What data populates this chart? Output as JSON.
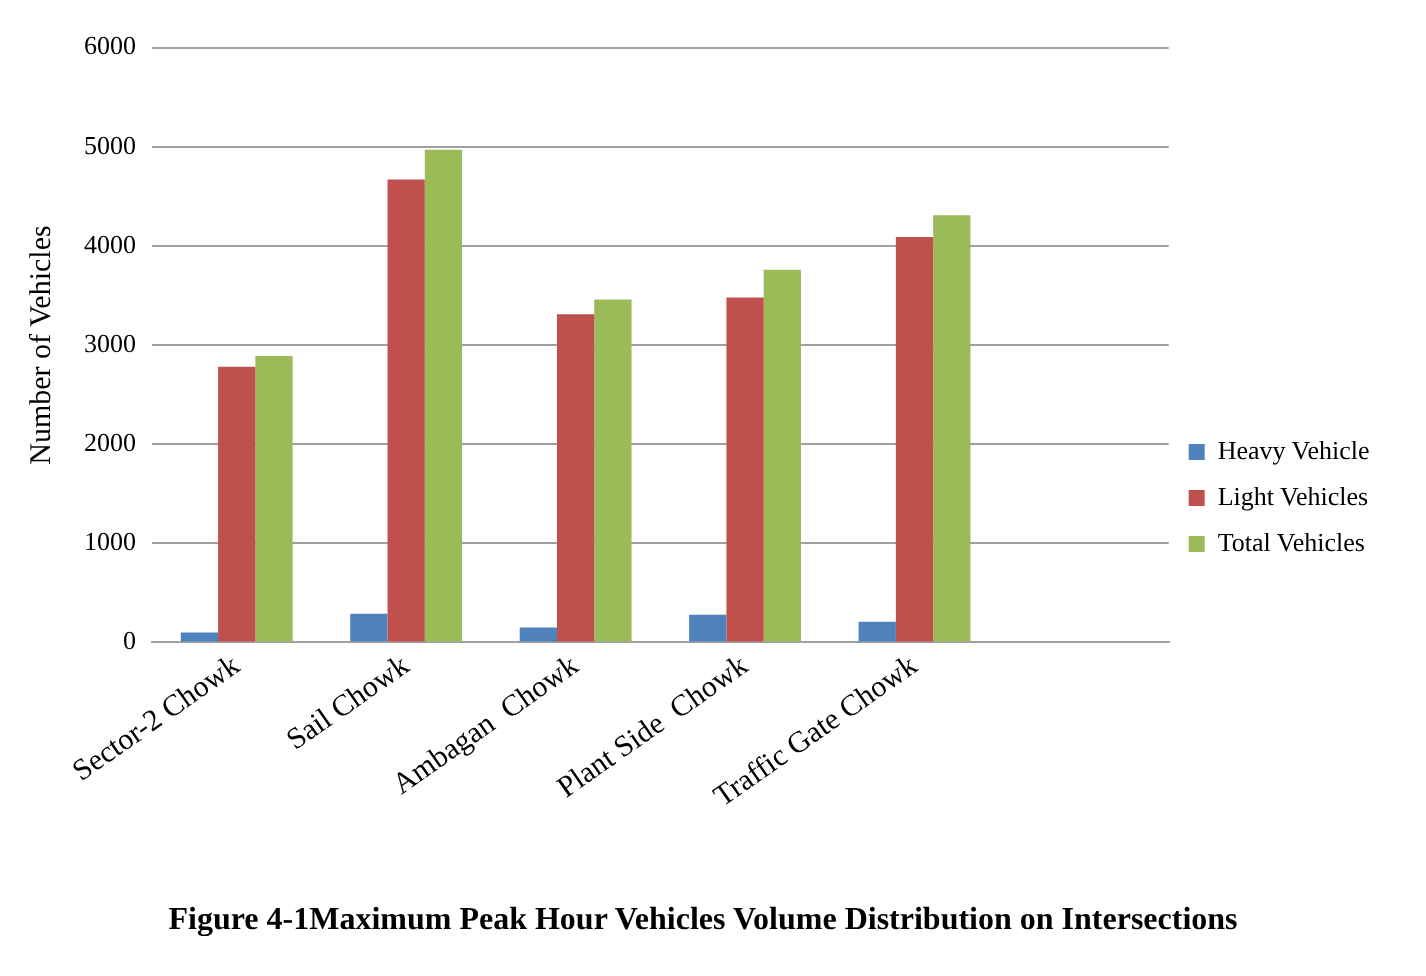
{
  "chart_data": {
    "type": "bar",
    "title": "Figure 4-1Maximum Peak Hour Vehicles Volume Distribution on Intersections",
    "ylabel": "Number of Vehicles",
    "categories": [
      "Sector-2 Chowk",
      "Sail Chowk",
      "Ambagan  Chowk",
      "Plant Side  Chowk",
      "Traffic Gate Chowk",
      null
    ],
    "series": [
      {
        "name": "Heavy Vehicle",
        "color": "#4f81bd",
        "values": [
          100,
          290,
          150,
          280,
          210,
          null
        ]
      },
      {
        "name": "Light Vehicles",
        "color": "#c0504d",
        "values": [
          2780,
          4670,
          3310,
          3480,
          4090,
          null
        ]
      },
      {
        "name": "Total Vehicles",
        "color": "#9bbb59",
        "values": [
          2890,
          4970,
          3460,
          3760,
          4310,
          null
        ]
      }
    ],
    "ylim": [
      0,
      6000
    ],
    "yticks": [
      0,
      1000,
      2000,
      3000,
      4000,
      5000,
      6000
    ],
    "grid": "y",
    "legend": "right"
  }
}
